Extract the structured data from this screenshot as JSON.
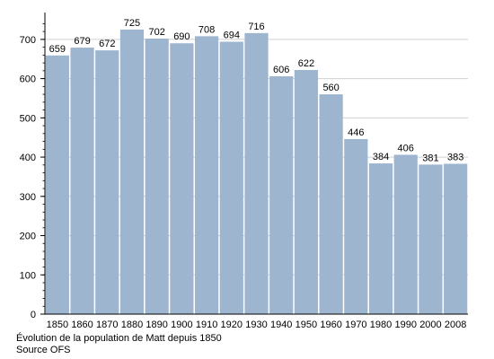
{
  "chart_data": {
    "type": "bar",
    "categories": [
      "1850",
      "1860",
      "1870",
      "1880",
      "1890",
      "1900",
      "1910",
      "1920",
      "1930",
      "1940",
      "1950",
      "1960",
      "1970",
      "1980",
      "1990",
      "2000",
      "2008"
    ],
    "values": [
      659,
      679,
      672,
      725,
      702,
      690,
      708,
      694,
      716,
      606,
      622,
      560,
      446,
      384,
      406,
      381,
      383
    ],
    "data_labels": [
      "659",
      "679",
      "672",
      "725",
      "702",
      "690",
      "708",
      "694",
      "716",
      "606",
      "622",
      "560",
      "446",
      "384",
      "406",
      "381",
      "383"
    ],
    "title": "",
    "xlabel": "",
    "ylabel": "",
    "ylim": [
      0,
      750
    ],
    "yticks": [
      "0",
      "100",
      "200",
      "300",
      "400",
      "500",
      "600",
      "700"
    ],
    "grid": true,
    "bar_color": "#9eb5cf",
    "grid_color": "#d0d0d0"
  },
  "caption": {
    "line1": "Évolution de la population de Matt depuis 1850",
    "line2": "Source OFS"
  }
}
